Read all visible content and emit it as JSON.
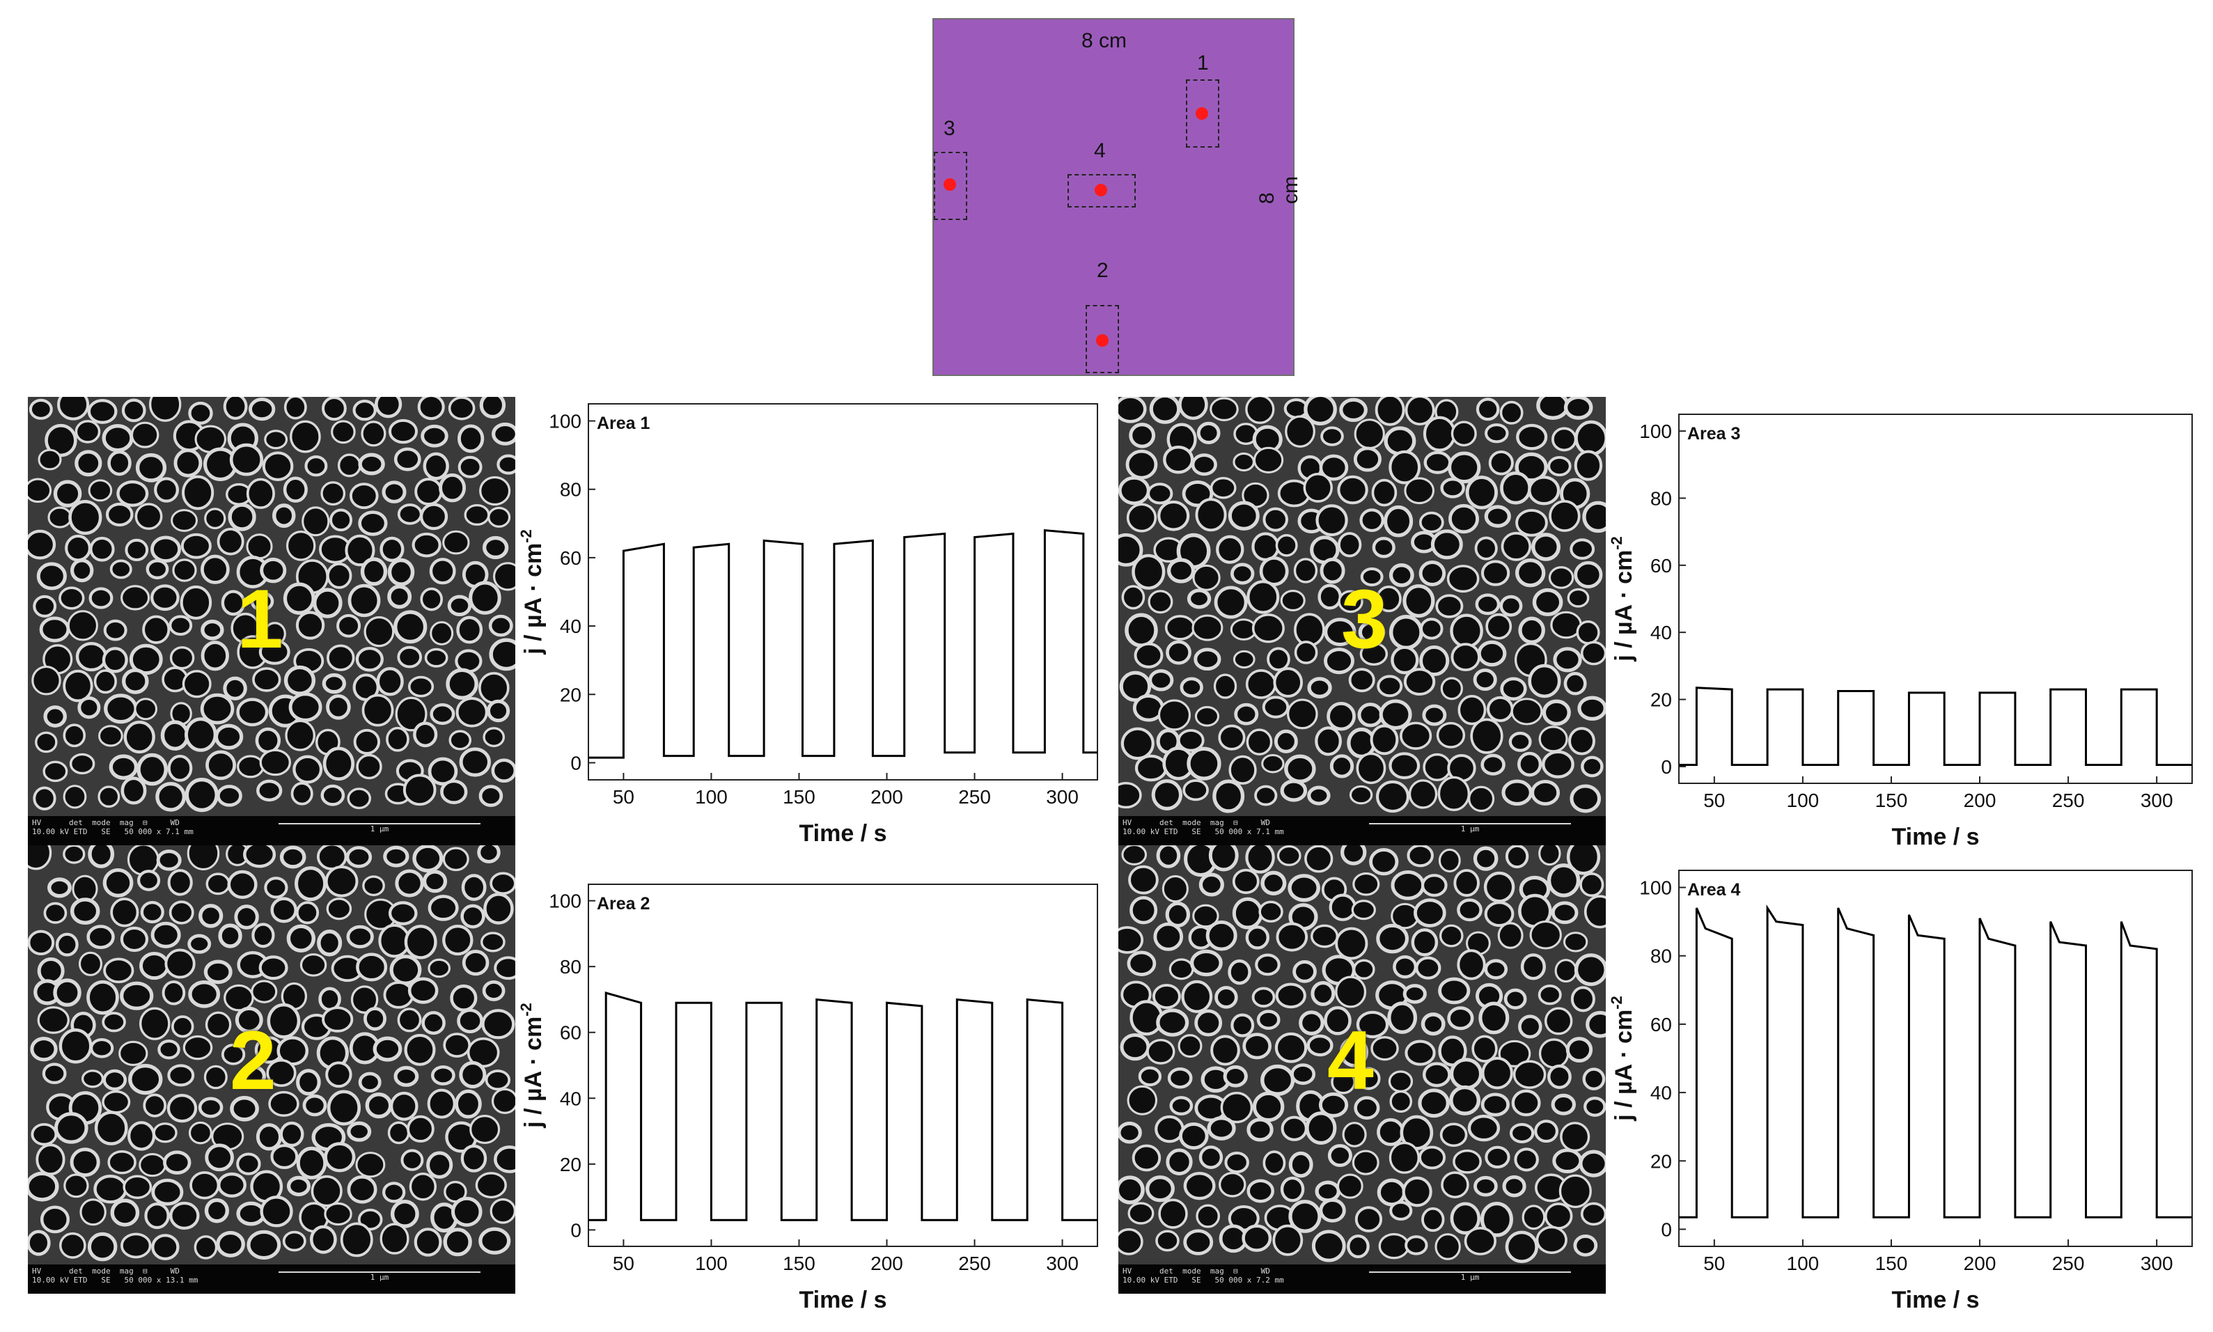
{
  "sample_diagram": {
    "width_label": "8 cm",
    "height_label": "8 cm",
    "colors": {
      "sample": "#9c5bbb",
      "marker": "#ff1a1a"
    },
    "areas": [
      "1",
      "2",
      "3",
      "4"
    ]
  },
  "sem_images": [
    {
      "label": "1",
      "info_line1": "HV      det  mode  mag  ⊟     WD",
      "info_line2": "10.00 kV ETD   SE   50 000 x 7.1 mm",
      "scale": "1 µm"
    },
    {
      "label": "2",
      "info_line1": "HV      det  mode  mag  ⊟     WD",
      "info_line2": "10.00 kV ETD   SE   50 000 x 13.1 mm",
      "scale": "1 µm"
    },
    {
      "label": "3",
      "info_line1": "HV      det  mode  mag  ⊟     WD",
      "info_line2": "10.00 kV ETD   SE   50 000 x 7.1 mm",
      "scale": "1 µm"
    },
    {
      "label": "4",
      "info_line1": "HV      det  mode  mag  ⊟     WD",
      "info_line2": "10.00 kV ETD   SE   50 000 x 7.2 mm",
      "scale": "1 µm"
    }
  ],
  "chart_data": [
    {
      "type": "line",
      "title": "Area 1",
      "xlabel": "Time / s",
      "ylabel": "j / µA · cm",
      "ylabel_superscript": "-2",
      "xlim": [
        30,
        320
      ],
      "ylim": [
        -5,
        105
      ],
      "xticks": [
        50,
        100,
        150,
        200,
        250,
        300
      ],
      "yticks": [
        0,
        20,
        40,
        60,
        80,
        100
      ],
      "series": [
        {
          "x": [
            30,
            50,
            50,
            73,
            73,
            90,
            90,
            110,
            110,
            130,
            130,
            152,
            152,
            170,
            170,
            192,
            192,
            210,
            210,
            233,
            233,
            250,
            250,
            272,
            272,
            290,
            290,
            312,
            312,
            320
          ],
          "y": [
            1.5,
            1.5,
            62,
            64,
            2,
            2,
            63,
            64,
            2,
            2,
            65,
            64,
            2,
            2,
            64,
            65,
            2,
            2,
            66,
            67,
            3,
            3,
            66,
            67,
            3,
            3,
            68,
            67,
            3,
            3
          ]
        }
      ]
    },
    {
      "type": "line",
      "title": "Area 2",
      "xlabel": "Time / s",
      "ylabel": "j / µA · cm",
      "ylabel_superscript": "-2",
      "xlim": [
        30,
        320
      ],
      "ylim": [
        -5,
        105
      ],
      "xticks": [
        50,
        100,
        150,
        200,
        250,
        300
      ],
      "yticks": [
        0,
        20,
        40,
        60,
        80,
        100
      ],
      "series": [
        {
          "x": [
            30,
            40,
            40,
            60,
            60,
            80,
            80,
            100,
            100,
            120,
            120,
            140,
            140,
            160,
            160,
            180,
            180,
            200,
            200,
            220,
            220,
            240,
            240,
            260,
            260,
            280,
            280,
            300,
            300,
            320
          ],
          "y": [
            3,
            3,
            72,
            69,
            3,
            3,
            69,
            69,
            3,
            3,
            69,
            69,
            3,
            3,
            70,
            69,
            3,
            3,
            69,
            68,
            3,
            3,
            70,
            69,
            3,
            3,
            70,
            69,
            3,
            3
          ]
        }
      ]
    },
    {
      "type": "line",
      "title": "Area 3",
      "xlabel": "Time / s",
      "ylabel": "j / µA · cm",
      "ylabel_superscript": "-2",
      "xlim": [
        30,
        320
      ],
      "ylim": [
        -5,
        105
      ],
      "xticks": [
        50,
        100,
        150,
        200,
        250,
        300
      ],
      "yticks": [
        0,
        20,
        40,
        60,
        80,
        100
      ],
      "series": [
        {
          "x": [
            30,
            40,
            40,
            60,
            60,
            80,
            80,
            100,
            100,
            120,
            120,
            140,
            140,
            160,
            160,
            180,
            180,
            200,
            200,
            220,
            220,
            240,
            240,
            260,
            260,
            280,
            280,
            300,
            300,
            320
          ],
          "y": [
            0.5,
            0.5,
            23.5,
            23,
            0.5,
            0.5,
            23,
            23,
            0.5,
            0.5,
            22.5,
            22.5,
            0.5,
            0.5,
            22,
            22,
            0.5,
            0.5,
            22,
            22,
            0.5,
            0.5,
            23,
            23,
            0.5,
            0.5,
            23,
            23,
            0.5,
            0.5
          ]
        }
      ]
    },
    {
      "type": "line",
      "title": "Area 4",
      "xlabel": "Time / s",
      "ylabel": "j / µA · cm",
      "ylabel_superscript": "-2",
      "xlim": [
        30,
        320
      ],
      "ylim": [
        -5,
        105
      ],
      "xticks": [
        50,
        100,
        150,
        200,
        250,
        300
      ],
      "yticks": [
        0,
        20,
        40,
        60,
        80,
        100
      ],
      "series": [
        {
          "x": [
            30,
            40,
            40,
            45,
            60,
            60,
            80,
            80,
            85,
            100,
            100,
            120,
            120,
            125,
            140,
            140,
            160,
            160,
            165,
            180,
            180,
            200,
            200,
            205,
            220,
            220,
            240,
            240,
            245,
            260,
            260,
            280,
            280,
            285,
            300,
            300,
            320
          ],
          "y": [
            3.5,
            3.5,
            94,
            88,
            85,
            3.5,
            3.5,
            94,
            90,
            89,
            3.5,
            3.5,
            94,
            88,
            86,
            3.5,
            3.5,
            92,
            86,
            85,
            3.5,
            3.5,
            91,
            85,
            83,
            3.5,
            3.5,
            90,
            84,
            83,
            3.5,
            3.5,
            90,
            83,
            82,
            3.5,
            3.5
          ]
        }
      ]
    }
  ]
}
